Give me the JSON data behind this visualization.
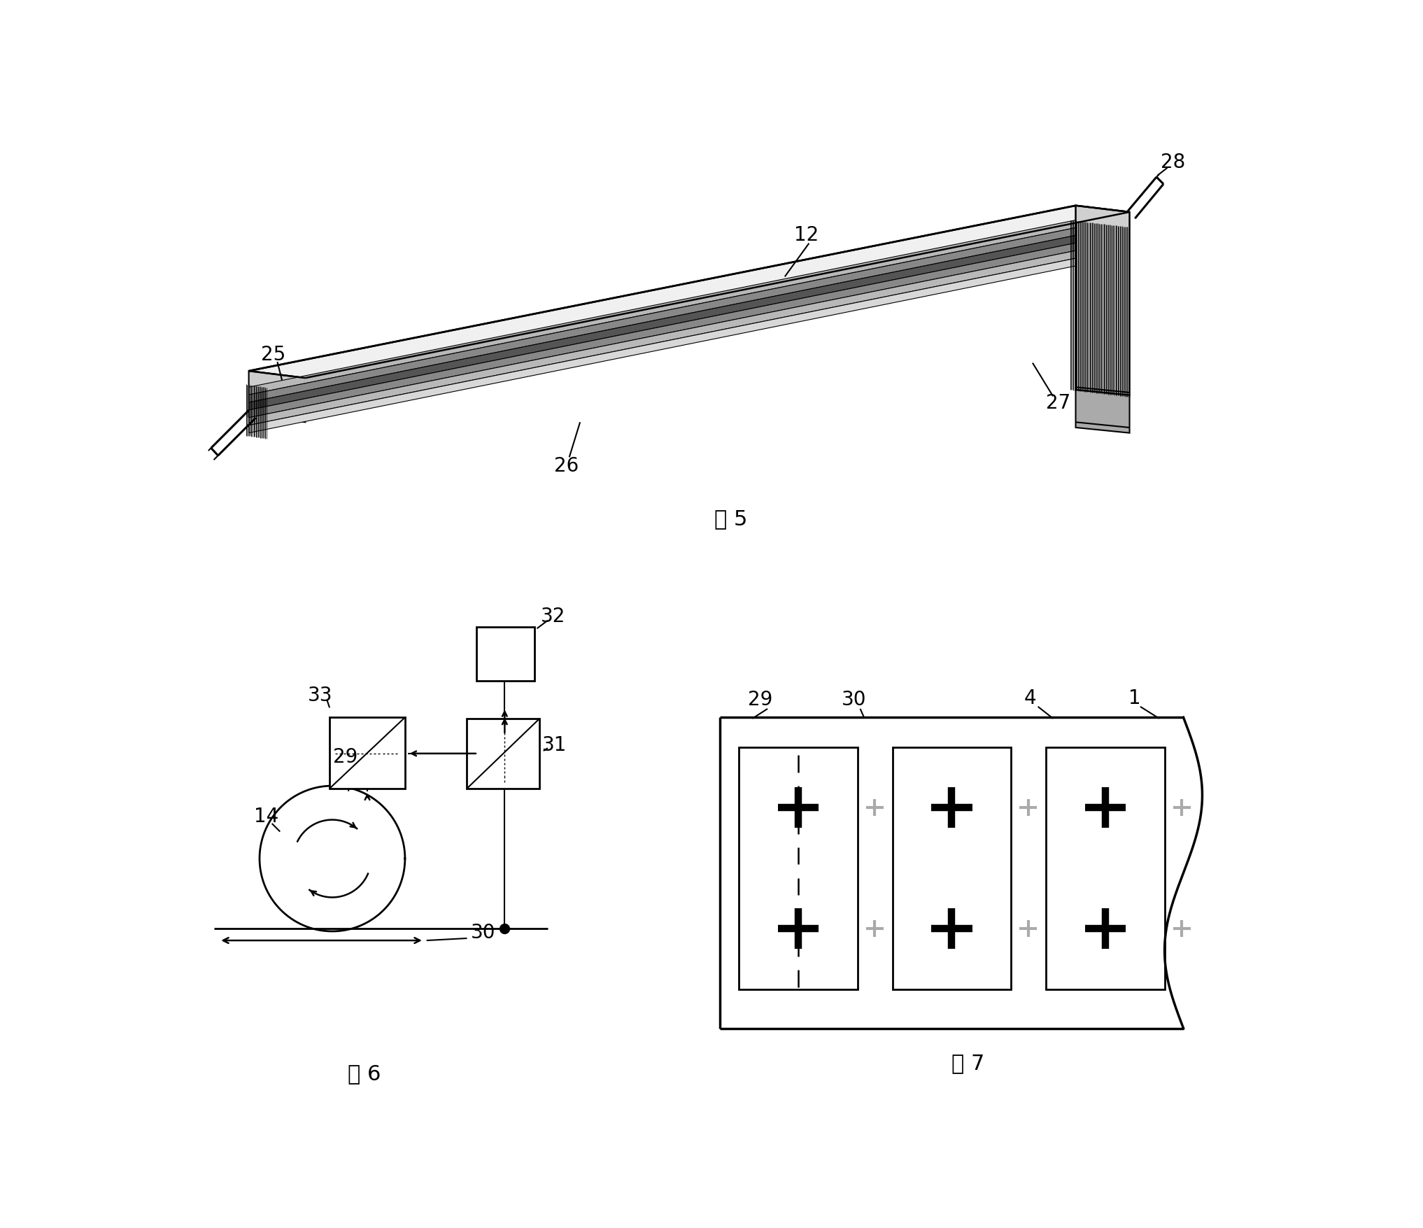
{
  "bg_color": "#ffffff",
  "lc": "#000000",
  "gc": "#aaaaaa",
  "fig5_caption": "图 5",
  "fig6_caption": "图 6",
  "fig7_caption": "图 7"
}
